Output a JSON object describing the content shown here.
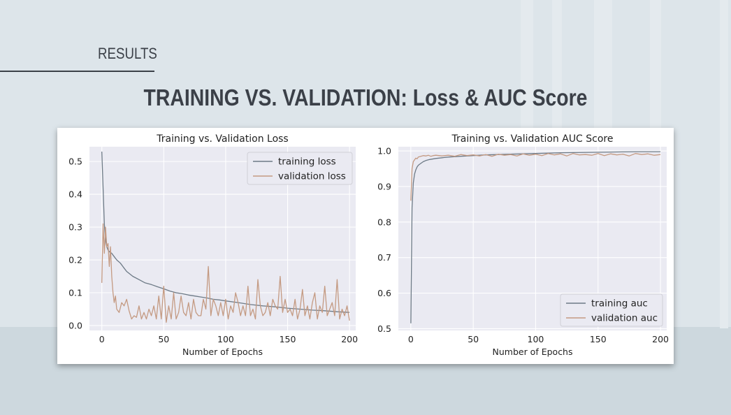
{
  "slide": {
    "section_label": "RESULTS",
    "title": "TRAINING VS. VALIDATION: Loss & AUC Score"
  },
  "colors": {
    "training": "#6d7a86",
    "validation": "#c49a82",
    "plot_bg": "#eaeaf2",
    "grid": "#ffffff",
    "text": "#3b4048"
  },
  "chart_data": [
    {
      "type": "line",
      "title": "Training vs. Validation Loss",
      "xlabel": "Number of Epochs",
      "ylabel": "",
      "xlim": [
        -10,
        205
      ],
      "ylim": [
        -0.015,
        0.545
      ],
      "xticks": [
        0,
        50,
        100,
        150,
        200
      ],
      "yticks": [
        0.0,
        0.1,
        0.2,
        0.3,
        0.4,
        0.5
      ],
      "ytick_labels": [
        "0.0",
        "0.1",
        "0.2",
        "0.3",
        "0.4",
        "0.5"
      ],
      "grid": true,
      "legend": "top-right",
      "series": [
        {
          "name": "training loss",
          "x": [
            0,
            1,
            2,
            3,
            4,
            5,
            6,
            8,
            10,
            12,
            15,
            18,
            20,
            25,
            30,
            35,
            40,
            45,
            50,
            55,
            60,
            65,
            70,
            75,
            80,
            85,
            90,
            95,
            100,
            110,
            120,
            130,
            140,
            150,
            160,
            170,
            180,
            190,
            200
          ],
          "y": [
            0.53,
            0.42,
            0.31,
            0.26,
            0.24,
            0.23,
            0.225,
            0.22,
            0.21,
            0.2,
            0.19,
            0.175,
            0.165,
            0.15,
            0.14,
            0.13,
            0.125,
            0.118,
            0.112,
            0.105,
            0.1,
            0.097,
            0.093,
            0.09,
            0.087,
            0.084,
            0.08,
            0.078,
            0.075,
            0.07,
            0.064,
            0.06,
            0.057,
            0.053,
            0.05,
            0.047,
            0.045,
            0.042,
            0.04
          ]
        },
        {
          "name": "validation loss",
          "x": [
            0,
            1,
            2,
            3,
            4,
            5,
            6,
            7,
            8,
            9,
            10,
            11,
            12,
            14,
            16,
            18,
            20,
            22,
            24,
            26,
            28,
            30,
            32,
            34,
            36,
            38,
            40,
            42,
            44,
            46,
            48,
            50,
            52,
            54,
            56,
            58,
            60,
            62,
            64,
            66,
            68,
            70,
            72,
            74,
            76,
            78,
            80,
            82,
            84,
            86,
            88,
            90,
            92,
            94,
            96,
            98,
            100,
            102,
            104,
            106,
            108,
            110,
            112,
            114,
            116,
            118,
            120,
            122,
            124,
            126,
            128,
            130,
            132,
            134,
            136,
            138,
            140,
            142,
            144,
            146,
            148,
            150,
            152,
            154,
            156,
            158,
            160,
            162,
            164,
            166,
            168,
            170,
            172,
            174,
            176,
            178,
            180,
            182,
            184,
            186,
            188,
            190,
            192,
            194,
            196,
            198,
            200
          ],
          "y": [
            0.13,
            0.31,
            0.22,
            0.3,
            0.24,
            0.25,
            0.18,
            0.24,
            0.15,
            0.1,
            0.07,
            0.09,
            0.05,
            0.04,
            0.07,
            0.06,
            0.08,
            0.045,
            0.02,
            0.03,
            0.025,
            0.06,
            0.02,
            0.04,
            0.02,
            0.05,
            0.03,
            0.06,
            0.02,
            0.09,
            0.02,
            0.12,
            0.01,
            0.06,
            0.02,
            0.1,
            0.02,
            0.04,
            0.09,
            0.04,
            0.03,
            0.07,
            0.02,
            0.08,
            0.04,
            0.03,
            0.03,
            0.08,
            0.05,
            0.18,
            0.03,
            0.08,
            0.06,
            0.03,
            0.07,
            0.03,
            0.08,
            0.02,
            0.06,
            0.04,
            0.1,
            0.07,
            0.03,
            0.06,
            0.03,
            0.12,
            0.03,
            0.05,
            0.02,
            0.14,
            0.06,
            0.03,
            0.04,
            0.07,
            0.03,
            0.08,
            0.06,
            0.05,
            0.15,
            0.04,
            0.08,
            0.04,
            0.05,
            0.03,
            0.08,
            0.02,
            0.05,
            0.11,
            0.03,
            0.06,
            0.02,
            0.07,
            0.1,
            0.02,
            0.06,
            0.04,
            0.12,
            0.03,
            0.05,
            0.07,
            0.03,
            0.14,
            0.02,
            0.05,
            0.03,
            0.06,
            0.015
          ]
        }
      ]
    },
    {
      "type": "line",
      "title": "Training vs. Validation AUC Score",
      "xlabel": "Number of Epochs",
      "ylabel": "",
      "xlim": [
        -10,
        205
      ],
      "ylim": [
        0.495,
        1.012
      ],
      "xticks": [
        0,
        50,
        100,
        150,
        200
      ],
      "yticks": [
        0.5,
        0.6,
        0.7,
        0.8,
        0.9,
        1.0
      ],
      "ytick_labels": [
        "0.5",
        "0.6",
        "0.7",
        "0.8",
        "0.9",
        "1.0"
      ],
      "grid": true,
      "legend": "bottom-right",
      "series": [
        {
          "name": "training auc",
          "x": [
            0,
            1,
            2,
            3,
            4,
            5,
            6,
            8,
            10,
            12,
            15,
            20,
            25,
            30,
            40,
            50,
            60,
            70,
            80,
            100,
            120,
            140,
            160,
            180,
            200
          ],
          "y": [
            0.515,
            0.84,
            0.91,
            0.935,
            0.947,
            0.955,
            0.96,
            0.965,
            0.97,
            0.973,
            0.976,
            0.979,
            0.981,
            0.983,
            0.985,
            0.987,
            0.989,
            0.99,
            0.991,
            0.993,
            0.995,
            0.996,
            0.997,
            0.998,
            0.998
          ]
        },
        {
          "name": "validation auc",
          "x": [
            0,
            1,
            2,
            3,
            4,
            5,
            6,
            8,
            10,
            12,
            14,
            16,
            18,
            20,
            25,
            30,
            35,
            40,
            45,
            50,
            55,
            60,
            65,
            70,
            75,
            80,
            85,
            90,
            95,
            100,
            105,
            110,
            115,
            120,
            125,
            130,
            135,
            140,
            145,
            150,
            155,
            160,
            165,
            170,
            175,
            180,
            185,
            190,
            195,
            200
          ],
          "y": [
            0.86,
            0.95,
            0.97,
            0.975,
            0.98,
            0.978,
            0.983,
            0.985,
            0.987,
            0.986,
            0.988,
            0.985,
            0.987,
            0.988,
            0.986,
            0.988,
            0.985,
            0.99,
            0.987,
            0.989,
            0.986,
            0.99,
            0.985,
            0.991,
            0.988,
            0.99,
            0.986,
            0.992,
            0.988,
            0.991,
            0.987,
            0.993,
            0.989,
            0.992,
            0.986,
            0.993,
            0.989,
            0.99,
            0.988,
            0.993,
            0.987,
            0.992,
            0.989,
            0.991,
            0.986,
            0.993,
            0.99,
            0.992,
            0.988,
            0.99
          ]
        }
      ]
    }
  ]
}
